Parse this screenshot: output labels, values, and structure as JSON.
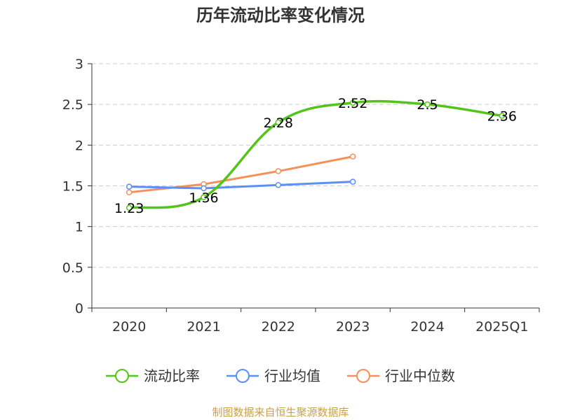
{
  "chart_data": {
    "type": "line",
    "title": "历年流动比率变化情况",
    "categories": [
      "2020",
      "2021",
      "2022",
      "2023",
      "2024",
      "2025Q1"
    ],
    "ylim": [
      0,
      3
    ],
    "yticks": [
      "0",
      "0.5",
      "1",
      "1.5",
      "2",
      "2.5",
      "3"
    ],
    "ytick_values": [
      0,
      0.5,
      1,
      1.5,
      2,
      2.5,
      3
    ],
    "grid": true,
    "legend_position": "bottom",
    "series": [
      {
        "name": "流动比率",
        "color": "#52c41a",
        "values": [
          1.23,
          1.36,
          2.28,
          2.52,
          2.5,
          2.36
        ],
        "labels": [
          "1.23",
          "1.36",
          "2.28",
          "2.52",
          "2.5",
          "2.36"
        ]
      },
      {
        "name": "行业均值",
        "color": "#5b8ff9",
        "values": [
          1.49,
          1.47,
          1.51,
          1.55,
          null,
          null
        ]
      },
      {
        "name": "行业中位数",
        "color": "#f6905a",
        "values": [
          1.42,
          1.52,
          1.68,
          1.86,
          null,
          null
        ]
      }
    ]
  },
  "source": {
    "text": "制图数据来自恒生聚源数据库",
    "color": "#c8a04a"
  }
}
